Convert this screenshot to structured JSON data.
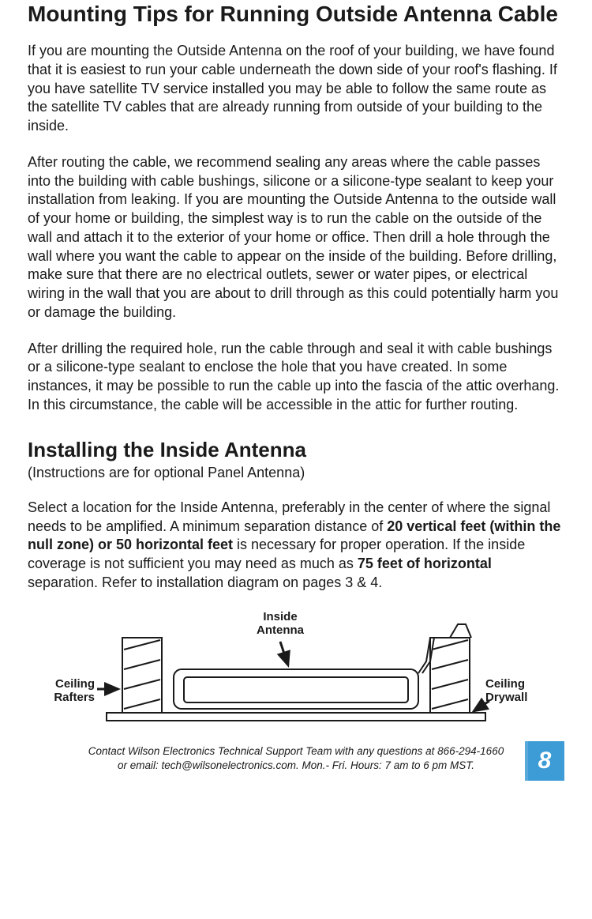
{
  "section1": {
    "title": "Mounting Tips for Running Outside Antenna Cable",
    "p1": "If you are mounting the Outside Antenna on the roof of your building, we have found that it is easiest to run your cable underneath the down side of your roof's flashing. If you have satellite TV service installed you may be able to follow the same route as the satellite TV cables that are already running from outside of your building to the inside.",
    "p2": "After routing the cable, we recommend sealing any areas where the cable passes into the building with cable bushings, silicone or a silicone-type sealant to keep your installation from leaking. If you are mounting the Outside Antenna to the outside wall of your home or building, the simplest way is to run the cable on the outside of the wall and attach it to the exterior of your home or office. Then drill a hole through the wall where you want the cable to appear on the inside of the building. Before drilling, make sure that there are no electrical outlets, sewer or water pipes, or electrical wiring in the wall that you are about to drill through as this could potentially harm you or damage the building.",
    "p3": "After drilling the required hole, run the cable through and seal it with cable bushings or a silicone-type sealant to enclose the hole that you have created. In some instances, it may be possible to run the cable up into the fascia of the attic overhang. In this circumstance, the cable will be accessible in the attic for further routing."
  },
  "section2": {
    "title": "Installing the Inside Antenna",
    "subtitle": "(Instructions are for optional Panel Antenna)",
    "p1_pre": "Select a location for the Inside Antenna, preferably in the center of where the signal needs to be amplified. A minimum separation distance of ",
    "p1_b1": "20 vertical feet (within the null zone) or 50 horizontal feet",
    "p1_mid": " is necessary for proper operation. If the inside coverage is not sufficient you may need as much as ",
    "p1_b2": "75 feet of horizontal",
    "p1_post": " separation. Refer to installation diagram on pages 3 & 4."
  },
  "diagram": {
    "inside_antenna": "Inside\nAntenna",
    "ceiling_rafters": "Ceiling\nRafters",
    "ceiling_drywall": "Ceiling\nDrywall",
    "stroke": "#1a1a1a",
    "bg": "#ffffff"
  },
  "footer": {
    "line1": "Contact Wilson Electronics Technical Support Team with any questions at 866-294-1660",
    "line2": "or email: tech@wilsonelectronics.com.    Mon.- Fri. Hours: 7 am to 6 pm MST.",
    "page_number": "8",
    "badge_bg": "#3d9bd6"
  }
}
